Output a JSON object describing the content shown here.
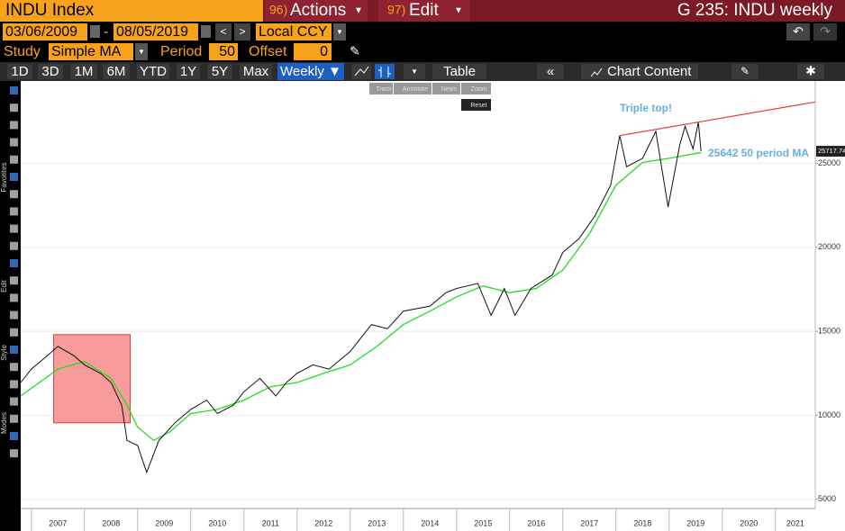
{
  "header": {
    "security": "INDU Index",
    "actions_num": "96)",
    "actions": "Actions",
    "edit_num": "97)",
    "edit": "Edit",
    "title": "G 235: INDU weekly"
  },
  "controls": {
    "start": "03/06/2009",
    "dash": "-",
    "end": "08/05/2019",
    "currency": "Local CCY",
    "study_label": "Study",
    "study": "Simple MA",
    "period_label": "Period",
    "period": "50",
    "offset_label": "Offset",
    "offset": "0"
  },
  "toolbar": {
    "ranges": [
      "1D",
      "3D",
      "1M",
      "6M",
      "YTD",
      "1Y",
      "5Y",
      "Max"
    ],
    "frequency": "Weekly ▼",
    "table": "Table",
    "back": "«",
    "chart_content": "Chart Content"
  },
  "mini_tools": [
    "Track",
    "Annotate",
    "News",
    "Zoom",
    "Reset"
  ],
  "sidebar": [
    "Favorites",
    "Edit",
    "Style",
    "Modes"
  ],
  "chart_data": {
    "type": "line",
    "xlim": [
      2006.8,
      2021.75
    ],
    "xticks": [
      {
        "value": 2007,
        "label": "2007"
      },
      {
        "value": 2008,
        "label": "2008"
      },
      {
        "value": 2009,
        "label": "2009"
      },
      {
        "value": 2010,
        "label": "2010"
      },
      {
        "value": 2011,
        "label": "2011"
      },
      {
        "value": 2012,
        "label": "2012"
      },
      {
        "value": 2013,
        "label": "2013"
      },
      {
        "value": 2014,
        "label": "2014"
      },
      {
        "value": 2015,
        "label": "2015"
      },
      {
        "value": 2016,
        "label": "2016"
      },
      {
        "value": 2017,
        "label": "2017"
      },
      {
        "value": 2018,
        "label": "2018"
      },
      {
        "value": 2019,
        "label": "2019"
      },
      {
        "value": 2020,
        "label": "2020"
      },
      {
        "value": 2021,
        "label": "2021"
      }
    ],
    "ylim": [
      4450,
      29900
    ],
    "yticks": [
      5000,
      10000,
      15000,
      20000,
      25000
    ],
    "grid": true,
    "series": [
      {
        "color": "#111111",
        "x": [
          2006.8,
          2007.0,
          2007.3,
          2007.5,
          2007.8,
          2008.0,
          2008.3,
          2008.5,
          2008.7,
          2008.8,
          2009.0,
          2009.17,
          2009.4,
          2009.7,
          2010.0,
          2010.3,
          2010.5,
          2010.8,
          2011.0,
          2011.3,
          2011.6,
          2011.8,
          2012.0,
          2012.3,
          2012.6,
          2013.0,
          2013.4,
          2013.7,
          2014.0,
          2014.5,
          2014.8,
          2015.0,
          2015.4,
          2015.65,
          2015.9,
          2016.1,
          2016.4,
          2016.8,
          2017.0,
          2017.3,
          2017.6,
          2017.9,
          2018.07,
          2018.2,
          2018.5,
          2018.75,
          2018.98,
          2019.2,
          2019.3,
          2019.45,
          2019.55,
          2019.6
        ],
        "values": [
          11950,
          12750,
          13550,
          14100,
          13550,
          13000,
          12500,
          11950,
          10600,
          8500,
          8200,
          6600,
          8500,
          9550,
          10350,
          10900,
          10100,
          10600,
          11400,
          12200,
          11150,
          11950,
          12500,
          13000,
          12750,
          13800,
          15400,
          15150,
          16200,
          16500,
          17300,
          17550,
          17850,
          15950,
          17550,
          15950,
          17550,
          18350,
          19700,
          20500,
          21850,
          23700,
          26650,
          24800,
          25300,
          26900,
          22400,
          26100,
          27200,
          25850,
          27450,
          25718
        ]
      },
      {
        "color": "#22dd22",
        "x": [
          2006.8,
          2007.5,
          2008.0,
          2008.5,
          2008.8,
          2009.0,
          2009.3,
          2009.6,
          2010.0,
          2010.5,
          2011.0,
          2011.5,
          2012.0,
          2012.5,
          2013.0,
          2013.5,
          2014.0,
          2014.5,
          2015.0,
          2015.5,
          2016.0,
          2016.5,
          2017.0,
          2017.5,
          2018.0,
          2018.5,
          2019.0,
          2019.6
        ],
        "values": [
          11150,
          12750,
          13200,
          12200,
          10600,
          9300,
          8500,
          9000,
          10100,
          10350,
          10900,
          11700,
          11950,
          12500,
          13000,
          14100,
          15400,
          16200,
          17050,
          17700,
          17300,
          17550,
          18650,
          20800,
          23700,
          25050,
          25300,
          25642
        ]
      }
    ],
    "trend_line": {
      "color": "#e83a3a",
      "x": [
        2018.07,
        2021.75
      ],
      "values": [
        26650,
        28650
      ]
    },
    "highlight": {
      "color": "#f47a7a",
      "x": [
        2007.42,
        2008.86
      ],
      "y": [
        9550,
        14800
      ]
    },
    "last_price": 25717.74,
    "annotations": [
      "Triple top!",
      "25642 50 period MA"
    ]
  }
}
